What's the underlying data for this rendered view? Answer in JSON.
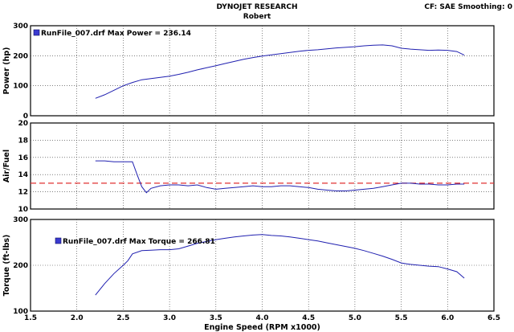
{
  "header": {
    "title": "DYNOJET RESEARCH",
    "subtitle": "Robert",
    "settings": "CF: SAE  Smoothing: 0"
  },
  "chart_data": [
    {
      "type": "line",
      "ylabel": "Power (hp)",
      "ylim": [
        0,
        300
      ],
      "yticks": [
        "0",
        "100",
        "200",
        "300"
      ],
      "xlim": [
        1.5,
        6.5
      ],
      "grid": true,
      "legend": "RunFile_007.drf Max Power = 236.14",
      "legend_placement": "top-left",
      "series": [
        {
          "name": "RunFile_007.drf",
          "color": "#2020b0",
          "x": [
            2.2,
            2.3,
            2.4,
            2.5,
            2.6,
            2.7,
            2.8,
            2.9,
            3.0,
            3.1,
            3.2,
            3.3,
            3.4,
            3.5,
            3.6,
            3.7,
            3.8,
            3.9,
            4.0,
            4.1,
            4.2,
            4.3,
            4.4,
            4.5,
            4.6,
            4.7,
            4.8,
            4.9,
            5.0,
            5.1,
            5.2,
            5.3,
            5.4,
            5.5,
            5.6,
            5.7,
            5.8,
            5.9,
            6.0,
            6.1,
            6.18
          ],
          "y": [
            58,
            70,
            85,
            100,
            111,
            120,
            124,
            128,
            132,
            138,
            145,
            153,
            160,
            167,
            174,
            181,
            188,
            194,
            199,
            203,
            207,
            211,
            215,
            218,
            220,
            223,
            226,
            228,
            230,
            233,
            235,
            236,
            233,
            225,
            222,
            220,
            218,
            219,
            218,
            214,
            202
          ]
        }
      ]
    },
    {
      "type": "line",
      "ylabel": "Air/Fuel",
      "ylim": [
        10,
        20
      ],
      "yticks": [
        "10",
        "12",
        "14",
        "16",
        "18",
        "20"
      ],
      "xlim": [
        1.5,
        6.5
      ],
      "grid": true,
      "reference_line": {
        "y": 13,
        "color": "#e03030",
        "style": "dashed"
      },
      "series": [
        {
          "name": "RunFile_007.drf",
          "color": "#2020b0",
          "x": [
            2.2,
            2.3,
            2.4,
            2.5,
            2.6,
            2.65,
            2.7,
            2.75,
            2.8,
            2.9,
            3.0,
            3.1,
            3.2,
            3.3,
            3.4,
            3.5,
            3.6,
            3.7,
            3.8,
            3.9,
            4.0,
            4.1,
            4.2,
            4.3,
            4.4,
            4.5,
            4.6,
            4.7,
            4.8,
            4.9,
            5.0,
            5.1,
            5.2,
            5.3,
            5.4,
            5.5,
            5.6,
            5.7,
            5.8,
            5.9,
            6.0,
            6.1,
            6.18
          ],
          "y": [
            15.6,
            15.6,
            15.5,
            15.5,
            15.5,
            14.0,
            12.6,
            11.9,
            12.4,
            12.7,
            12.8,
            12.8,
            12.7,
            12.8,
            12.5,
            12.3,
            12.4,
            12.5,
            12.6,
            12.7,
            12.6,
            12.6,
            12.7,
            12.7,
            12.6,
            12.5,
            12.3,
            12.2,
            12.1,
            12.1,
            12.2,
            12.3,
            12.4,
            12.6,
            12.8,
            13.0,
            13.0,
            12.9,
            12.9,
            12.8,
            12.8,
            12.9,
            12.9
          ]
        }
      ]
    },
    {
      "type": "line",
      "ylabel": "Torque (ft-lbs)",
      "xlabel": "Engine Speed (RPM x1000)",
      "ylim": [
        100,
        300
      ],
      "yticks": [
        "100",
        "200",
        "300"
      ],
      "xlim": [
        1.5,
        6.5
      ],
      "xticks": [
        "1.5",
        "2.0",
        "2.5",
        "3.0",
        "3.5",
        "4.0",
        "4.5",
        "5.0",
        "5.5",
        "6.0",
        "6.5"
      ],
      "grid": true,
      "legend": "RunFile_007.drf Max Torque = 266.81",
      "legend_placement": "top-left",
      "series": [
        {
          "name": "RunFile_007.drf",
          "color": "#2020b0",
          "x": [
            2.2,
            2.3,
            2.4,
            2.5,
            2.55,
            2.6,
            2.7,
            2.8,
            2.9,
            3.0,
            3.1,
            3.2,
            3.3,
            3.4,
            3.5,
            3.6,
            3.7,
            3.8,
            3.9,
            4.0,
            4.1,
            4.2,
            4.3,
            4.4,
            4.5,
            4.6,
            4.7,
            4.8,
            4.9,
            5.0,
            5.1,
            5.2,
            5.3,
            5.4,
            5.5,
            5.6,
            5.7,
            5.8,
            5.9,
            6.0,
            6.1,
            6.18
          ],
          "y": [
            135,
            160,
            182,
            200,
            210,
            225,
            232,
            233,
            234,
            234,
            236,
            242,
            248,
            252,
            256,
            259,
            262,
            264,
            266,
            267,
            265,
            264,
            262,
            259,
            256,
            253,
            249,
            245,
            241,
            237,
            232,
            226,
            220,
            213,
            205,
            202,
            200,
            198,
            197,
            192,
            186,
            172
          ]
        }
      ]
    }
  ]
}
